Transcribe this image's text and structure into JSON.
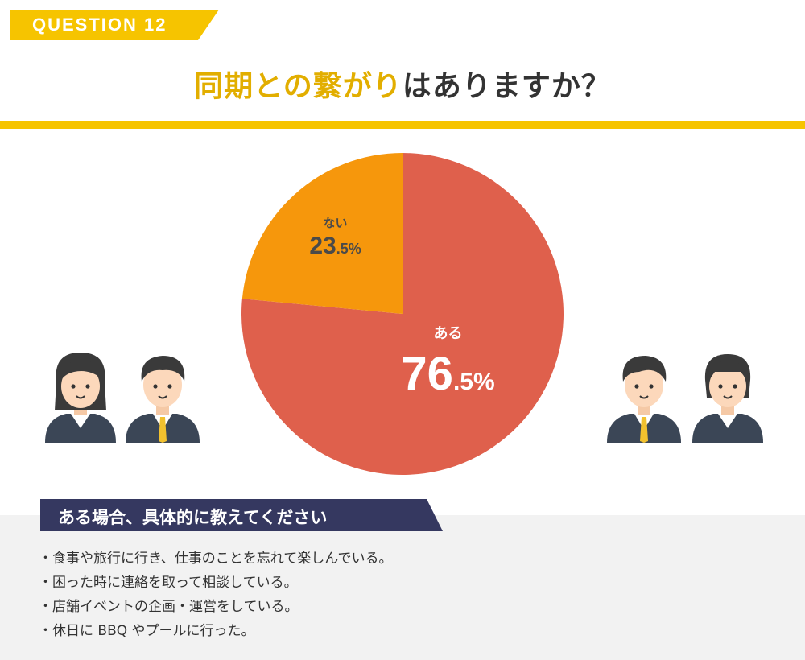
{
  "badge": "QUESTION 12",
  "title": {
    "highlight": "同期との繋がり",
    "rest": "はありますか？"
  },
  "chart_data": {
    "type": "pie",
    "slices": [
      {
        "label": "ある",
        "value": 76.5,
        "value_text": "76.5",
        "unit": "%",
        "color": "#df604c"
      },
      {
        "label": "ない",
        "value": 23.5,
        "value_text": "23.5",
        "unit": "%",
        "color": "#f6970c"
      }
    ],
    "start": "12 o'clock",
    "direction": "clockwise"
  },
  "section": {
    "heading": "ある場合、具体的に教えてください",
    "answers": [
      "食事や旅行に行き、仕事のことを忘れて楽しんでいる。",
      "困った時に連絡を取って相談している。",
      "店舗イベントの企画・運営をしている。",
      "休日に BBQ やプールに行った。"
    ]
  },
  "colors": {
    "accent": "#f6c400",
    "navy": "#353860"
  }
}
